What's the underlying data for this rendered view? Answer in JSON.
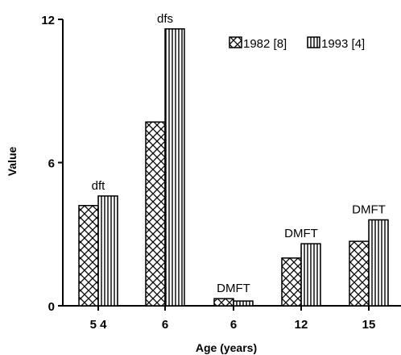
{
  "chart_data": {
    "type": "bar",
    "xlabel": "Age (years)",
    "ylabel": "Value",
    "ylim": [
      0,
      12
    ],
    "yticks": [
      "0",
      "6",
      "12"
    ],
    "categories": [
      "5 4",
      "6",
      "6",
      "12",
      "15"
    ],
    "group_labels": [
      "dft",
      "dfs",
      "DMFT",
      "DMFT",
      "DMFT"
    ],
    "series": [
      {
        "name": "1982 [8]",
        "pattern": "crosshatch",
        "values": [
          4.2,
          7.7,
          0.3,
          2.0,
          2.7
        ]
      },
      {
        "name": "1993 [4]",
        "pattern": "vertical-lines",
        "values": [
          4.6,
          11.6,
          0.2,
          2.6,
          3.6
        ]
      }
    ],
    "legend_position": "top-right",
    "grid": false
  }
}
